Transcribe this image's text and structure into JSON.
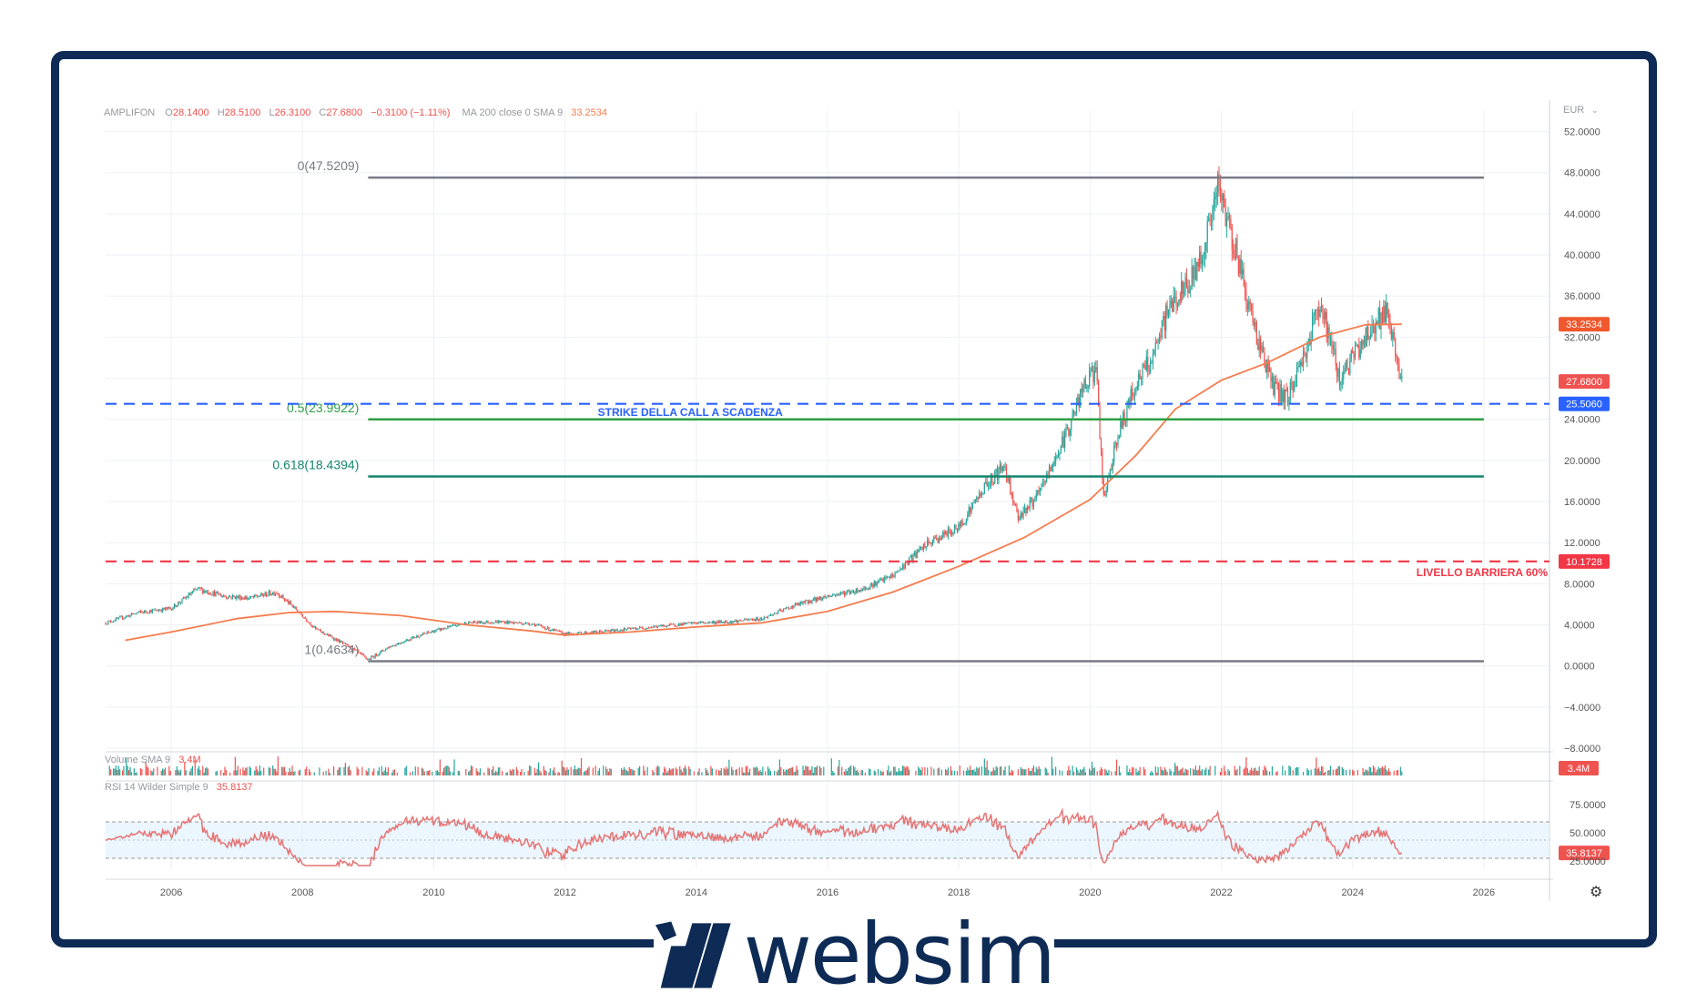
{
  "brand": {
    "name": "websim",
    "color": "#0d2b55"
  },
  "colors": {
    "candle_up": "#26a69a",
    "candle_down": "#ef5350",
    "ma": "#f57c4e",
    "fib": "#787b86",
    "fib_50": "#2e9e44",
    "fib_618": "#13856e",
    "strike": "#2962ff",
    "barrier": "#f23645",
    "rsi": "#e57373"
  },
  "header": {
    "symbol": "AMPLIFON",
    "o_label": "O",
    "o": "28.1400",
    "h_label": "H",
    "h": "28.5100",
    "l_label": "L",
    "l": "26.3100",
    "c_label": "C",
    "c": "27.6800",
    "change": "−0.3100 (−1.11%)",
    "ma_label": "MA 200 close 0 SMA 9",
    "ma_value": "33.2534"
  },
  "currency": "EUR",
  "panels": {
    "volume": {
      "label": "Volume SMA 9",
      "value": "3.4M"
    },
    "rsi": {
      "label": "RSI 14 Wilder Simple 9",
      "value": "35.8137",
      "ticks": [
        "75.0000",
        "50.0000",
        "25.0000"
      ]
    }
  },
  "chart_data": {
    "type": "candlestick",
    "ylim": [
      -8,
      54
    ],
    "xlim": [
      2005.0,
      2027.0
    ],
    "y_ticks": [
      "52.0000",
      "48.0000",
      "44.0000",
      "40.0000",
      "36.0000",
      "32.0000",
      "28.0000",
      "24.0000",
      "20.0000",
      "16.0000",
      "12.0000",
      "8.0000",
      "4.0000",
      "0.0000",
      "−4.0000",
      "−8.0000"
    ],
    "x_ticks": [
      "2006",
      "2008",
      "2010",
      "2012",
      "2014",
      "2016",
      "2018",
      "2020",
      "2022",
      "2024",
      "2026"
    ],
    "price_path": [
      [
        2005.0,
        4.2
      ],
      [
        2005.5,
        5.2
      ],
      [
        2006.0,
        5.6
      ],
      [
        2006.4,
        7.5
      ],
      [
        2006.8,
        6.8
      ],
      [
        2007.2,
        6.6
      ],
      [
        2007.6,
        7.2
      ],
      [
        2007.9,
        5.5
      ],
      [
        2008.2,
        3.6
      ],
      [
        2008.5,
        2.6
      ],
      [
        2008.8,
        1.5
      ],
      [
        2009.0,
        0.6
      ],
      [
        2009.3,
        1.8
      ],
      [
        2009.7,
        2.8
      ],
      [
        2010.0,
        3.4
      ],
      [
        2010.5,
        4.2
      ],
      [
        2011.0,
        4.3
      ],
      [
        2011.5,
        4.1
      ],
      [
        2012.0,
        3.1
      ],
      [
        2012.5,
        3.3
      ],
      [
        2013.0,
        3.6
      ],
      [
        2013.5,
        3.9
      ],
      [
        2014.0,
        4.2
      ],
      [
        2014.5,
        4.3
      ],
      [
        2015.0,
        4.6
      ],
      [
        2015.5,
        5.9
      ],
      [
        2016.0,
        6.8
      ],
      [
        2016.5,
        7.4
      ],
      [
        2017.0,
        8.8
      ],
      [
        2017.5,
        11.8
      ],
      [
        2018.0,
        13.5
      ],
      [
        2018.4,
        17.5
      ],
      [
        2018.7,
        19.5
      ],
      [
        2018.9,
        14.5
      ],
      [
        2019.2,
        16.5
      ],
      [
        2019.6,
        22.0
      ],
      [
        2019.9,
        27.0
      ],
      [
        2020.1,
        29.0
      ],
      [
        2020.2,
        16.0
      ],
      [
        2020.4,
        22.0
      ],
      [
        2020.7,
        27.5
      ],
      [
        2021.0,
        30.5
      ],
      [
        2021.2,
        35.0
      ],
      [
        2021.5,
        37.0
      ],
      [
        2021.7,
        40.0
      ],
      [
        2021.95,
        46.5
      ],
      [
        2022.2,
        41.0
      ],
      [
        2022.5,
        33.0
      ],
      [
        2022.8,
        27.0
      ],
      [
        2023.0,
        26.0
      ],
      [
        2023.3,
        31.0
      ],
      [
        2023.5,
        35.5
      ],
      [
        2023.8,
        28.0
      ],
      [
        2024.0,
        30.0
      ],
      [
        2024.3,
        33.0
      ],
      [
        2024.5,
        34.5
      ],
      [
        2024.75,
        27.68
      ]
    ],
    "ma200_path": [
      [
        2005.3,
        2.5
      ],
      [
        2006.0,
        3.3
      ],
      [
        2007.0,
        4.6
      ],
      [
        2007.8,
        5.2
      ],
      [
        2008.5,
        5.3
      ],
      [
        2009.5,
        4.9
      ],
      [
        2010.5,
        4.0
      ],
      [
        2011.5,
        3.4
      ],
      [
        2012.0,
        3.0
      ],
      [
        2013.0,
        3.3
      ],
      [
        2014.0,
        3.8
      ],
      [
        2015.0,
        4.2
      ],
      [
        2016.0,
        5.3
      ],
      [
        2017.0,
        7.2
      ],
      [
        2018.0,
        9.7
      ],
      [
        2019.0,
        12.5
      ],
      [
        2020.0,
        16.2
      ],
      [
        2020.7,
        20.5
      ],
      [
        2021.3,
        25.0
      ],
      [
        2022.0,
        27.8
      ],
      [
        2022.7,
        29.5
      ],
      [
        2023.5,
        32.0
      ],
      [
        2024.2,
        33.2
      ],
      [
        2024.75,
        33.2534
      ]
    ],
    "fib_levels": [
      {
        "label": "0(47.5209)",
        "value": 47.5209
      },
      {
        "label": "0.5(23.9922)",
        "value": 23.9922
      },
      {
        "label": "0.618(18.4394)",
        "value": 18.4394
      },
      {
        "label": "1(0.4634)",
        "value": 0.4634
      }
    ],
    "fib_x_range": [
      2009.0,
      2026.0
    ],
    "strike": {
      "label": "STRIKE DELLA CALL A SCADENZA",
      "value": 25.506,
      "value_label": "25.5060"
    },
    "barrier": {
      "label": "LIVELLO BARRIERA 60%",
      "value": 10.1728,
      "value_label": "10.1728"
    },
    "last_price": {
      "value": 27.68,
      "value_label": "27.6800"
    },
    "ma_last": {
      "value": 33.2534,
      "value_label": "33.2534"
    },
    "rsi": {
      "ylim": [
        15,
        95
      ],
      "upper": 70,
      "lower": 30,
      "last": 35.8137
    }
  }
}
